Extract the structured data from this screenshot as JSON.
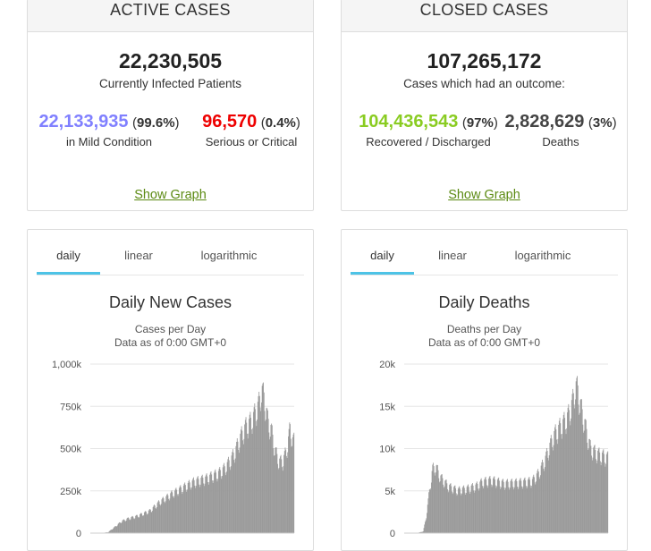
{
  "active": {
    "header": "ACTIVE CASES",
    "total": "22,230,505",
    "subtitle": "Currently Infected Patients",
    "mild": {
      "value": "22,133,935",
      "pct": "99.6%",
      "label": "in Mild Condition",
      "color": "#8080ff"
    },
    "serious": {
      "value": "96,570",
      "pct": "0.4%",
      "label": "Serious or Critical",
      "color": "#ee0000"
    },
    "show_graph": "Show Graph"
  },
  "closed": {
    "header": "CLOSED CASES",
    "total": "107,265,172",
    "subtitle": "Cases which had an outcome:",
    "recovered": {
      "value": "104,436,543",
      "pct": "97%",
      "label": "Recovered / Discharged",
      "color": "#8acc22"
    },
    "deaths": {
      "value": "2,828,629",
      "pct": "3%",
      "label": "Deaths",
      "color": "#444444"
    },
    "show_graph": "Show Graph"
  },
  "chart_cases": {
    "tabs": [
      "daily",
      "linear",
      "logarithmic"
    ],
    "active_tab": "daily"
  },
  "chart_deaths": {
    "tabs": [
      "daily",
      "linear",
      "logarithmic"
    ],
    "active_tab": "daily"
  },
  "chart_data": [
    {
      "type": "bar",
      "title": "Daily New Cases",
      "subtitle": "Cases per Day",
      "subtitle2": "Data as of 0:00 GMT+0",
      "ylabel": "",
      "xlabel": "",
      "ylim": [
        0,
        1000000
      ],
      "yticks": [
        0,
        250000,
        500000,
        750000,
        1000000
      ],
      "ytick_labels": [
        "0",
        "250k",
        "500k",
        "750k",
        "1,000k"
      ],
      "grid": true,
      "color": "#9a9a9a",
      "series_shape": [
        [
          0,
          0
        ],
        [
          15,
          0
        ],
        [
          28,
          5000
        ],
        [
          40,
          40000
        ],
        [
          50,
          70000
        ],
        [
          60,
          85000
        ],
        [
          75,
          100000
        ],
        [
          95,
          130000
        ],
        [
          110,
          180000
        ],
        [
          130,
          230000
        ],
        [
          150,
          270000
        ],
        [
          165,
          300000
        ],
        [
          175,
          310000
        ],
        [
          185,
          320000
        ],
        [
          205,
          350000
        ],
        [
          215,
          380000
        ],
        [
          225,
          430000
        ],
        [
          232,
          480000
        ],
        [
          240,
          560000
        ],
        [
          248,
          620000
        ],
        [
          258,
          660000
        ],
        [
          266,
          720000
        ],
        [
          270,
          760000
        ],
        [
          274,
          840000
        ],
        [
          278,
          800000
        ],
        [
          284,
          660000
        ],
        [
          290,
          600000
        ],
        [
          296,
          480000
        ],
        [
          302,
          420000
        ],
        [
          308,
          420000
        ],
        [
          312,
          460000
        ],
        [
          316,
          520000
        ],
        [
          320,
          620000
        ],
        [
          324,
          540000
        ],
        [
          326,
          540000
        ]
      ],
      "n_days": 327
    },
    {
      "type": "bar",
      "title": "Daily Deaths",
      "subtitle": "Deaths per Day",
      "subtitle2": "Data as of 0:00 GMT+0",
      "ylabel": "",
      "xlabel": "",
      "ylim": [
        0,
        20000
      ],
      "yticks": [
        0,
        5000,
        10000,
        15000,
        20000
      ],
      "ytick_labels": [
        "0",
        "5k",
        "10k",
        "15k",
        "20k"
      ],
      "grid": true,
      "color": "#9a9a9a",
      "series_shape": [
        [
          0,
          0
        ],
        [
          20,
          0
        ],
        [
          30,
          200
        ],
        [
          35,
          2000
        ],
        [
          40,
          5000
        ],
        [
          45,
          7500
        ],
        [
          50,
          7800
        ],
        [
          58,
          6500
        ],
        [
          70,
          5500
        ],
        [
          85,
          5000
        ],
        [
          100,
          5200
        ],
        [
          115,
          5500
        ],
        [
          125,
          6000
        ],
        [
          140,
          6200
        ],
        [
          160,
          5800
        ],
        [
          180,
          5900
        ],
        [
          195,
          6000
        ],
        [
          205,
          6100
        ],
        [
          215,
          7000
        ],
        [
          225,
          8500
        ],
        [
          232,
          10000
        ],
        [
          240,
          11500
        ],
        [
          250,
          12500
        ],
        [
          258,
          13200
        ],
        [
          264,
          14000
        ],
        [
          270,
          15500
        ],
        [
          274,
          17200
        ],
        [
          278,
          16800
        ],
        [
          282,
          15000
        ],
        [
          287,
          13500
        ],
        [
          293,
          11500
        ],
        [
          298,
          10000
        ],
        [
          305,
          9500
        ],
        [
          312,
          9200
        ],
        [
          320,
          9000
        ],
        [
          326,
          8800
        ]
      ],
      "n_days": 327
    }
  ]
}
